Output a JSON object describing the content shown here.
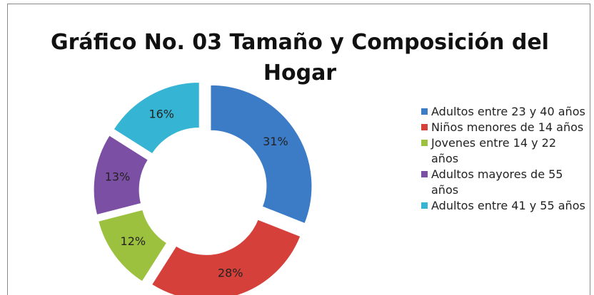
{
  "chart_data": {
    "type": "donut",
    "title": "Gráfico No. 03 Tamaño y Composición del Hogar",
    "categories": [
      "Adultos entre 23 y 40 años",
      "Niños menores de 14 años",
      "Jovenes entre 14 y 22 años",
      "Adultos mayores de 55 años",
      "Adultos entre 41 y 55 años"
    ],
    "values": [
      31,
      28,
      12,
      13,
      16
    ],
    "value_labels": [
      "31%",
      "28%",
      "12%",
      "13%",
      "16%"
    ],
    "colors": [
      "#3c7cc7",
      "#d6403a",
      "#9cc13e",
      "#7b4fa3",
      "#35b4d4"
    ],
    "legend": "right"
  }
}
